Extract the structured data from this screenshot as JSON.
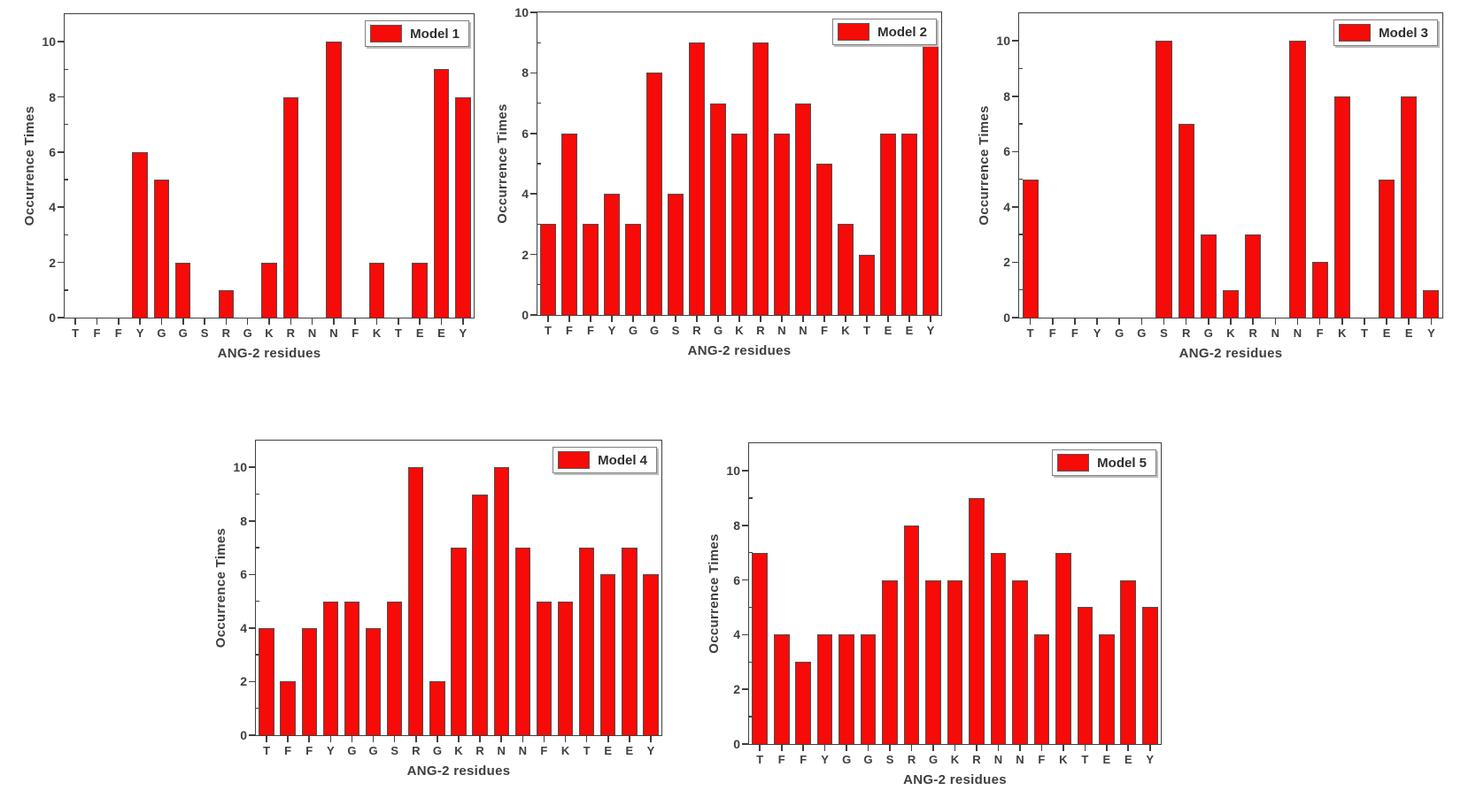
{
  "figure": {
    "background": "#ffffff",
    "description_title": ""
  },
  "colors": {
    "bar_fill": "#f70b08",
    "bar_edge": "#4f4f4f",
    "frame": "#404040",
    "text": "#3f3f3f",
    "legend_border": "#808080",
    "legend_shadow": "#bdbdbd"
  },
  "chart_data": [
    {
      "type": "bar",
      "legend": "Model 1",
      "xlabel": "ANG-2 residues",
      "ylabel": "Occurrence Times",
      "categories": [
        "T",
        "F",
        "F",
        "Y",
        "G",
        "G",
        "S",
        "R",
        "G",
        "K",
        "R",
        "N",
        "N",
        "F",
        "K",
        "T",
        "E",
        "E",
        "Y"
      ],
      "values": [
        0,
        0,
        0,
        6,
        5,
        2,
        0,
        1,
        0,
        2,
        8,
        0,
        10,
        0,
        2,
        0,
        2,
        9,
        8
      ],
      "yticks": [
        0,
        2,
        4,
        6,
        8,
        10
      ],
      "minor_yticks": [
        1,
        3,
        5,
        7,
        9
      ],
      "ylim": [
        0,
        11
      ],
      "grid": false,
      "legend_position": "top-right"
    },
    {
      "type": "bar",
      "legend": "Model 2",
      "xlabel": "ANG-2 residues",
      "ylabel": "Occurrence Times",
      "categories": [
        "T",
        "F",
        "F",
        "Y",
        "G",
        "G",
        "S",
        "R",
        "G",
        "K",
        "R",
        "N",
        "N",
        "F",
        "K",
        "T",
        "E",
        "E",
        "Y"
      ],
      "values": [
        3,
        6,
        3,
        4,
        3,
        8,
        4,
        9,
        7,
        6,
        9,
        6,
        7,
        5,
        3,
        2,
        6,
        6,
        9
      ],
      "yticks": [
        0,
        2,
        4,
        6,
        8,
        10
      ],
      "minor_yticks": [
        1,
        3,
        5,
        7,
        9
      ],
      "ylim": [
        0,
        10
      ],
      "grid": false,
      "legend_position": "top-right"
    },
    {
      "type": "bar",
      "legend": "Model 3",
      "xlabel": "ANG-2 residues",
      "ylabel": "Occurrence Times",
      "categories": [
        "T",
        "F",
        "F",
        "Y",
        "G",
        "G",
        "S",
        "R",
        "G",
        "K",
        "R",
        "N",
        "N",
        "F",
        "K",
        "T",
        "E",
        "E",
        "Y"
      ],
      "values": [
        5,
        0,
        0,
        0,
        0,
        0,
        10,
        7,
        3,
        1,
        3,
        0,
        10,
        2,
        8,
        0,
        5,
        8,
        1
      ],
      "yticks": [
        0,
        2,
        4,
        6,
        8,
        10
      ],
      "minor_yticks": [
        1,
        3,
        5,
        7,
        9
      ],
      "ylim": [
        0,
        11
      ],
      "grid": false,
      "legend_position": "top-right"
    },
    {
      "type": "bar",
      "legend": "Model 4",
      "xlabel": "ANG-2 residues",
      "ylabel": "Occurrence Times",
      "categories": [
        "T",
        "F",
        "F",
        "Y",
        "G",
        "G",
        "S",
        "R",
        "G",
        "K",
        "R",
        "N",
        "N",
        "F",
        "K",
        "T",
        "E",
        "E",
        "Y"
      ],
      "values": [
        4,
        2,
        4,
        5,
        5,
        4,
        5,
        10,
        2,
        7,
        9,
        10,
        7,
        5,
        5,
        7,
        6,
        7,
        6
      ],
      "yticks": [
        0,
        2,
        4,
        6,
        8,
        10
      ],
      "minor_yticks": [
        1,
        3,
        5,
        7,
        9
      ],
      "ylim": [
        0,
        11
      ],
      "grid": false,
      "legend_position": "top-right"
    },
    {
      "type": "bar",
      "legend": "Model 5",
      "xlabel": "ANG-2 residues",
      "ylabel": "Occurrence Times",
      "categories": [
        "T",
        "F",
        "F",
        "Y",
        "G",
        "G",
        "S",
        "R",
        "G",
        "K",
        "R",
        "N",
        "N",
        "F",
        "K",
        "T",
        "E",
        "E",
        "Y"
      ],
      "values": [
        7,
        4,
        3,
        4,
        4,
        4,
        6,
        8,
        6,
        6,
        9,
        7,
        6,
        4,
        7,
        5,
        4,
        6,
        5
      ],
      "yticks": [
        0,
        2,
        4,
        6,
        8,
        10
      ],
      "minor_yticks": [
        1,
        3,
        5,
        7,
        9
      ],
      "ylim": [
        0,
        11
      ],
      "grid": false,
      "legend_position": "top-right"
    }
  ]
}
